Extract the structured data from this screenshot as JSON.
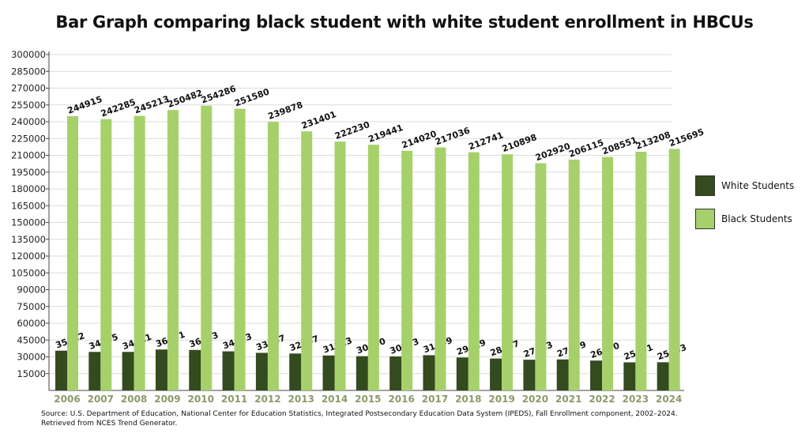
{
  "chart_data": {
    "type": "bar",
    "title": "Bar Graph comparing black student with white student enrollment in HBCUs",
    "categories": [
      "2006",
      "2007",
      "2008",
      "2009",
      "2010",
      "2011",
      "2012",
      "2013",
      "2014",
      "2015",
      "2016",
      "2017",
      "2018",
      "2019",
      "2020",
      "2021",
      "2022",
      "2023",
      "2024"
    ],
    "series": [
      {
        "name": "White Students",
        "color": "#344a1f",
        "values": [
          35482,
          34395,
          34411,
          36531,
          36153,
          34893,
          33567,
          32947,
          31223,
          30600,
          30373,
          31449,
          29429,
          28507,
          27433,
          27699,
          26670,
          25071,
          25153
        ]
      },
      {
        "name": "Black Students",
        "color": "#a6d16a",
        "values": [
          244915,
          242285,
          245213,
          250482,
          254286,
          251580,
          239878,
          231401,
          222230,
          219441,
          214020,
          217036,
          212741,
          210898,
          202920,
          206115,
          208551,
          213208,
          215695
        ]
      }
    ],
    "ylim": [
      0,
      300000
    ],
    "yticks": [
      15000,
      30000,
      45000,
      60000,
      75000,
      90000,
      105000,
      120000,
      135000,
      150000,
      165000,
      180000,
      195000,
      210000,
      225000,
      240000,
      255000,
      270000,
      285000,
      300000
    ],
    "grid": true,
    "legend_position": "right",
    "xlabel": "",
    "ylabel": ""
  },
  "source": {
    "line1": "Source: U.S. Department of Education, National Center for Education Statistics, Integrated Postsecondary Education Data System (IPEDS), Fall Enrollment component, 2002–2024.",
    "line2": "Retrieved from NCES Trend Generator."
  }
}
